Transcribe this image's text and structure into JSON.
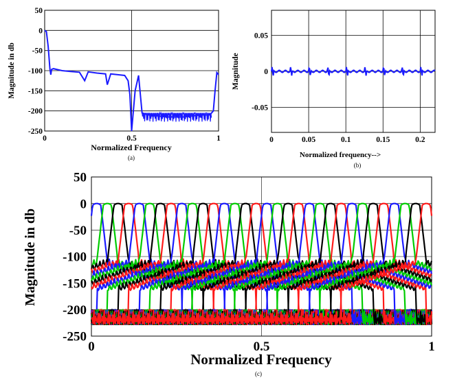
{
  "chart_data": [
    {
      "id": "a",
      "type": "line",
      "panel_label": "(a)",
      "title": "",
      "xlabel": "Normalized Frequency",
      "ylabel": "Magnitude in db",
      "xlim": [
        0,
        1
      ],
      "ylim": [
        -250,
        50
      ],
      "xticks": [
        0,
        0.5,
        1
      ],
      "xtick_labels": [
        "0",
        "0.5",
        "1"
      ],
      "yticks": [
        50,
        0,
        -50,
        -100,
        -150,
        -200,
        -250
      ],
      "ytick_labels": [
        "50",
        "0",
        "-50",
        "-100",
        "-150",
        "-200",
        "-250"
      ],
      "grid": true,
      "series": [
        {
          "color": "#1a1aff",
          "description": "prototype filter magnitude response",
          "x": [
            0,
            0.01,
            0.02,
            0.03,
            0.035,
            0.04,
            0.05,
            0.1,
            0.15,
            0.2,
            0.23,
            0.25,
            0.3,
            0.35,
            0.36,
            0.38,
            0.42,
            0.46,
            0.48,
            0.49,
            0.5,
            0.52,
            0.54,
            0.56,
            0.6,
            0.7,
            0.8,
            0.9,
            0.95,
            0.97,
            0.98,
            0.99,
            1.0
          ],
          "y": [
            0,
            -3,
            -40,
            -95,
            -110,
            -97,
            -95,
            -100,
            -102,
            -104,
            -125,
            -103,
            -106,
            -108,
            -135,
            -108,
            -110,
            -112,
            -125,
            -160,
            -250,
            -150,
            -112,
            -205,
            -210,
            -215,
            -215,
            -210,
            -210,
            -200,
            -150,
            -105,
            -110
          ]
        }
      ]
    },
    {
      "id": "b",
      "type": "line",
      "panel_label": "(b)",
      "title": "",
      "xlabel": "Normalized frequency-->",
      "ylabel": "Magnitude",
      "xlim": [
        0,
        0.22
      ],
      "ylim": [
        -0.085,
        0.085
      ],
      "xticks": [
        0,
        0.05,
        0.1,
        0.15,
        0.2
      ],
      "xtick_labels": [
        "0",
        "0.05",
        "0.1",
        "0.15",
        "0.2"
      ],
      "yticks": [
        0.05,
        0,
        -0.05
      ],
      "ytick_labels": [
        "0.05",
        "0",
        "-0.05"
      ],
      "grid": true,
      "series": [
        {
          "color": "#1a1aff",
          "description": "amplitude distortion ripple, about +/-0.006 around 0, period ~0.025",
          "ripple_amplitude": 0.006,
          "ripple_period": 0.025
        }
      ]
    },
    {
      "id": "c",
      "type": "line",
      "panel_label": "(c)",
      "title": "",
      "xlabel": "Normalized Frequency",
      "ylabel": "Magnitude in db",
      "xlim": [
        0,
        1
      ],
      "ylim": [
        -250,
        50
      ],
      "xticks": [
        0,
        0.5,
        1
      ],
      "xtick_labels": [
        "0",
        "0.5",
        "1"
      ],
      "yticks": [
        50,
        0,
        -50,
        -100,
        -150,
        -200,
        -250
      ],
      "ytick_labels": [
        "50",
        "0",
        "-50",
        "-100",
        "-150",
        "-200",
        "-250"
      ],
      "grid": true,
      "channels": 32,
      "channel_colors": [
        "#1a1aff",
        "#00cc00",
        "#000000",
        "#ff1a1a"
      ],
      "description": "32-channel filter bank magnitude responses; each channel peaks at 0 dB with sidelobes near -100 to -150 dB and stopband floor near -200 to -240 dB"
    }
  ]
}
